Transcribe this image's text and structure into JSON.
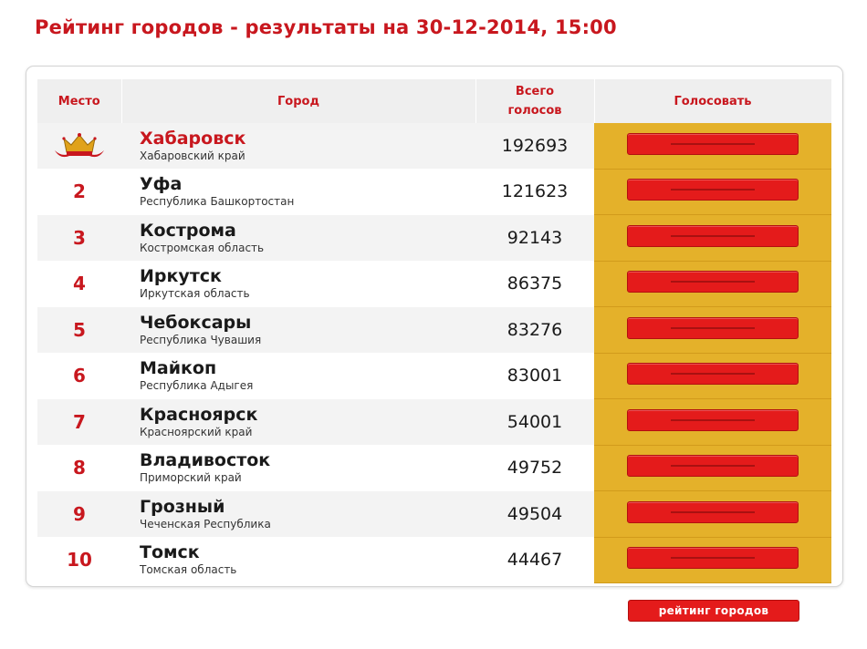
{
  "page": {
    "title": "Рейтинг городов - результаты на 30-12-2014, 15:00"
  },
  "table": {
    "headers": {
      "place": "Место",
      "city": "Город",
      "votes_line1": "Всего",
      "votes_line2": "голосов",
      "vote": "Голосовать"
    },
    "rows": [
      {
        "place": "",
        "city": "Хабаровск",
        "region": "Хабаровский край",
        "votes": "192693"
      },
      {
        "place": "2",
        "city": "Уфа",
        "region": "Республика Башкортостан",
        "votes": "121623"
      },
      {
        "place": "3",
        "city": "Кострома",
        "region": "Костромская область",
        "votes": "92143"
      },
      {
        "place": "4",
        "city": "Иркутск",
        "region": "Иркутская область",
        "votes": "86375"
      },
      {
        "place": "5",
        "city": "Чебоксары",
        "region": "Республика Чувашия",
        "votes": "83276"
      },
      {
        "place": "6",
        "city": "Майкоп",
        "region": "Республика Адыгея",
        "votes": "83001"
      },
      {
        "place": "7",
        "city": "Красноярск",
        "region": "Красноярский край",
        "votes": "54001"
      },
      {
        "place": "8",
        "city": "Владивосток",
        "region": "Приморский край",
        "votes": "49752"
      },
      {
        "place": "9",
        "city": "Грозный",
        "region": "Чеченская Республика",
        "votes": "49504"
      },
      {
        "place": "10",
        "city": "Томск",
        "region": "Томская область",
        "votes": "44467"
      }
    ]
  },
  "footer": {
    "rating_button_label": "рейтинг городов"
  },
  "icons": {
    "leader": "crown-icon"
  },
  "colors": {
    "accent": "#c8171e",
    "button": "#e41b1b",
    "vote_cell": "#e4b12a"
  }
}
